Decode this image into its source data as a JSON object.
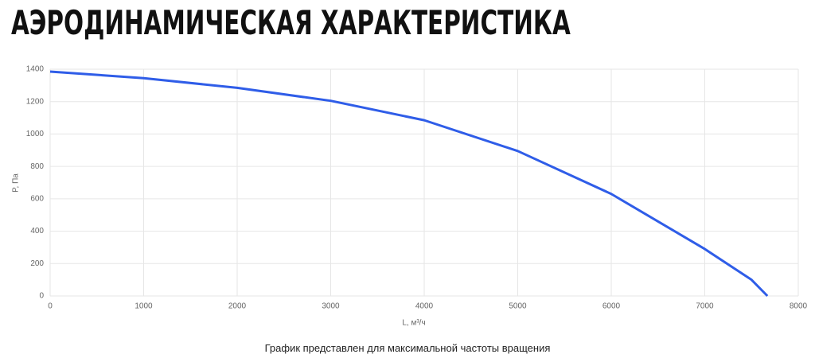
{
  "chart_data": {
    "type": "line",
    "title": "АЭРОДИНАМИЧЕСКАЯ ХАРАКТЕРИСТИКА",
    "x_label": "L, м³/ч",
    "y_label": "P, Па",
    "note": "График представлен для максимальной частоты вращения",
    "x": [
      0,
      1000,
      2000,
      3000,
      4000,
      5000,
      6000,
      7000,
      7500,
      7670
    ],
    "series": [
      {
        "name": "P",
        "color": "#2f5de8",
        "values": [
          1385,
          1345,
          1285,
          1205,
          1085,
          895,
          630,
          290,
          100,
          0
        ]
      }
    ],
    "xlim": [
      0,
      8000
    ],
    "xticks": [
      0,
      1000,
      2000,
      3000,
      4000,
      5000,
      6000,
      7000,
      8000
    ],
    "ylim": [
      0,
      1400
    ],
    "yticks": [
      0,
      200,
      400,
      600,
      800,
      1000,
      1200,
      1400
    ],
    "grid": true
  }
}
